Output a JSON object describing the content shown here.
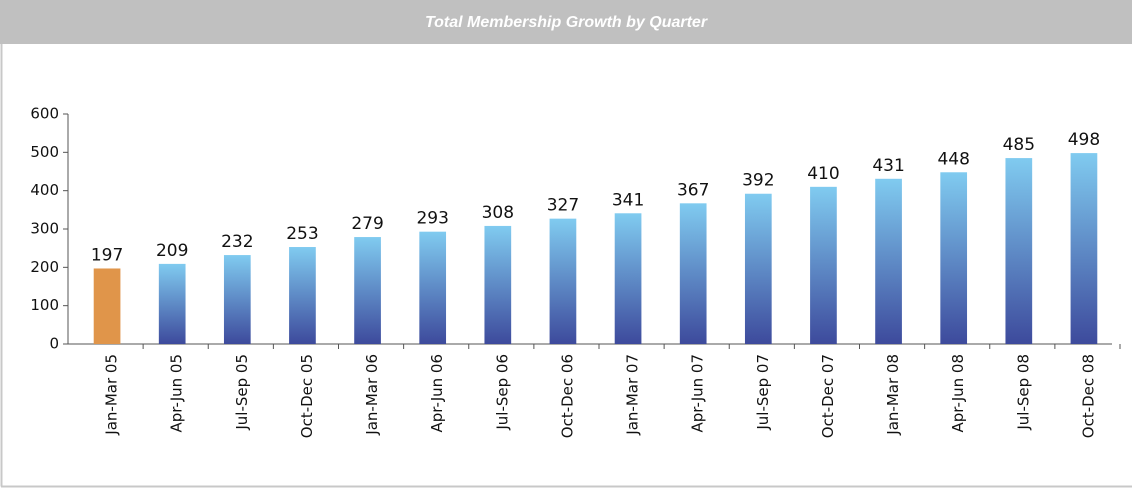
{
  "chart_data": {
    "type": "bar",
    "title": "Total Membership Growth by Quarter",
    "categories": [
      "Jan-Mar 05",
      "Apr-Jun 05",
      "Jul-Sep 05",
      "Oct-Dec 05",
      "Jan-Mar 06",
      "Apr-Jun 06",
      "Jul-Sep 06",
      "Oct-Dec 06",
      "Jan-Mar 07",
      "Apr-Jun 07",
      "Jul-Sep 07",
      "Oct-Dec 07",
      "Jan-Mar 08",
      "Apr-Jun 08",
      "Jul-Sep 08",
      "Oct-Dec 08"
    ],
    "values": [
      197,
      209,
      232,
      253,
      279,
      293,
      308,
      327,
      341,
      367,
      392,
      410,
      431,
      448,
      485,
      498
    ],
    "colors": [
      "#e0954a",
      [
        "#80cbf0",
        "#3d4a9c"
      ],
      [
        "#80cbf0",
        "#3d4a9c"
      ],
      [
        "#80cbf0",
        "#3d4a9c"
      ],
      [
        "#80cbf0",
        "#3d4a9c"
      ],
      [
        "#80cbf0",
        "#3d4a9c"
      ],
      [
        "#80cbf0",
        "#3d4a9c"
      ],
      [
        "#80cbf0",
        "#3d4a9c"
      ],
      [
        "#80cbf0",
        "#3d4a9c"
      ],
      [
        "#80cbf0",
        "#3d4a9c"
      ],
      [
        "#80cbf0",
        "#3d4a9c"
      ],
      [
        "#80cbf0",
        "#3d4a9c"
      ],
      [
        "#80cbf0",
        "#3d4a9c"
      ],
      [
        "#80cbf0",
        "#3d4a9c"
      ],
      [
        "#80cbf0",
        "#3d4a9c"
      ],
      [
        "#80cbf0",
        "#3d4a9c"
      ]
    ],
    "ylim": [
      0,
      600
    ],
    "yticks": [
      0,
      100,
      200,
      300,
      400,
      500,
      600
    ],
    "grid": false
  }
}
